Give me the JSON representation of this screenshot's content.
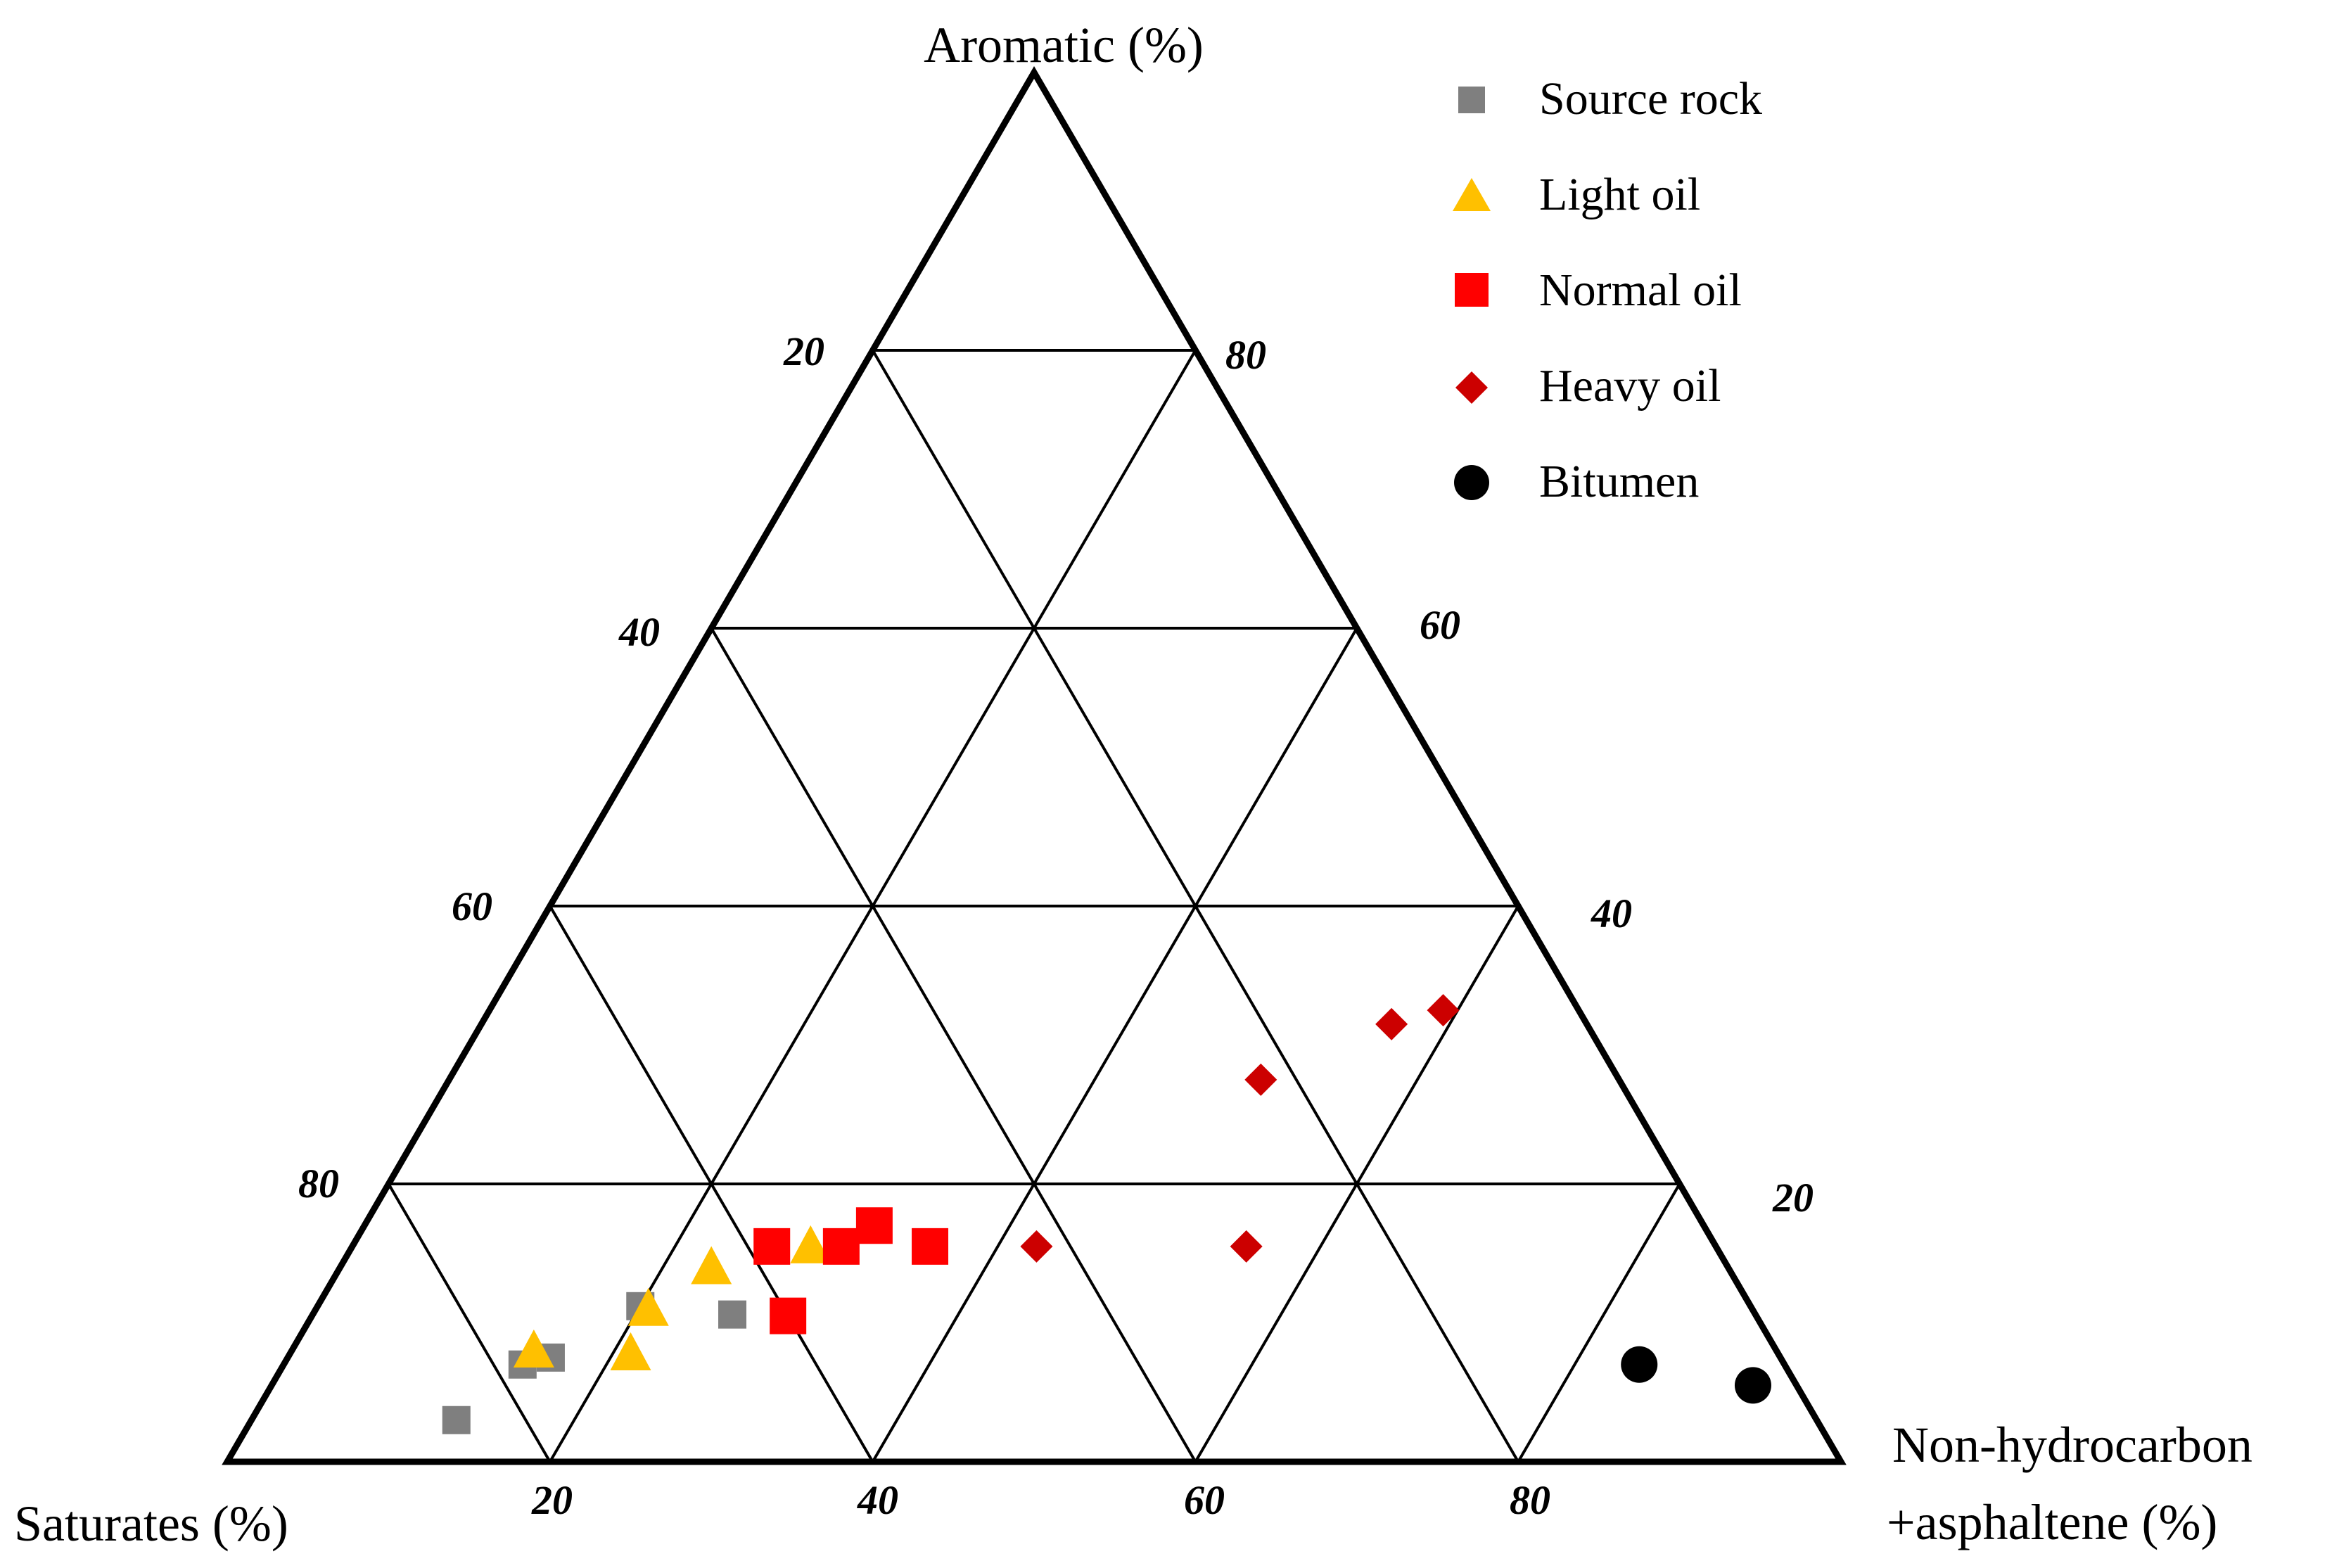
{
  "chart_data": {
    "type": "scatter",
    "subtype": "ternary",
    "axes": {
      "top": "Aromatic (%)",
      "left": "Saturates (%)",
      "right_line1": "Non-hydrocarbon",
      "right_line2": "+asphaltene (%)"
    },
    "ticks": {
      "bottom": [
        "20",
        "40",
        "60",
        "80"
      ],
      "left": [
        "20",
        "40",
        "60",
        "80"
      ],
      "right": [
        "80",
        "60",
        "40",
        "20"
      ]
    },
    "series": [
      {
        "name": "Source rock",
        "marker": "square",
        "color": "#7f7f7f",
        "points": [
          {
            "nonhydrocarbon": 12.7,
            "aromatic": 3.0
          },
          {
            "nonhydrocarbon": 14.8,
            "aromatic": 7.0
          },
          {
            "nonhydrocarbon": 16.3,
            "aromatic": 7.5
          },
          {
            "nonhydrocarbon": 20.0,
            "aromatic": 11.2
          },
          {
            "nonhydrocarbon": 26.0,
            "aromatic": 10.6
          }
        ]
      },
      {
        "name": "Light oil",
        "marker": "triangle",
        "color": "#ffc000",
        "points": [
          {
            "nonhydrocarbon": 15.0,
            "aromatic": 8.0
          },
          {
            "nonhydrocarbon": 20.6,
            "aromatic": 11.0
          },
          {
            "nonhydrocarbon": 21.1,
            "aromatic": 7.8
          },
          {
            "nonhydrocarbon": 23.0,
            "aromatic": 14.0
          },
          {
            "nonhydrocarbon": 28.4,
            "aromatic": 15.5
          }
        ]
      },
      {
        "name": "Normal oil",
        "marker": "square",
        "color": "#ff0000",
        "points": [
          {
            "nonhydrocarbon": 26.0,
            "aromatic": 15.5
          },
          {
            "nonhydrocarbon": 30.3,
            "aromatic": 15.5
          },
          {
            "nonhydrocarbon": 31.6,
            "aromatic": 17.0
          },
          {
            "nonhydrocarbon": 29.5,
            "aromatic": 10.5
          },
          {
            "nonhydrocarbon": 35.8,
            "aromatic": 15.5
          }
        ]
      },
      {
        "name": "Heavy oil",
        "marker": "diamond",
        "color": "#cc0000",
        "points": [
          {
            "nonhydrocarbon": 42.4,
            "aromatic": 15.5
          },
          {
            "nonhydrocarbon": 55.4,
            "aromatic": 15.5
          },
          {
            "nonhydrocarbon": 50.3,
            "aromatic": 27.5
          },
          {
            "nonhydrocarbon": 56.4,
            "aromatic": 31.5
          },
          {
            "nonhydrocarbon": 59.1,
            "aromatic": 32.5
          }
        ]
      },
      {
        "name": "Bitumen",
        "marker": "circle",
        "color": "#000000",
        "points": [
          {
            "nonhydrocarbon": 84.0,
            "aromatic": 7.0
          },
          {
            "nonhydrocarbon": 91.8,
            "aromatic": 5.5
          }
        ]
      }
    ],
    "grid": true,
    "grid_step": 20,
    "legend_position": "top-right"
  }
}
